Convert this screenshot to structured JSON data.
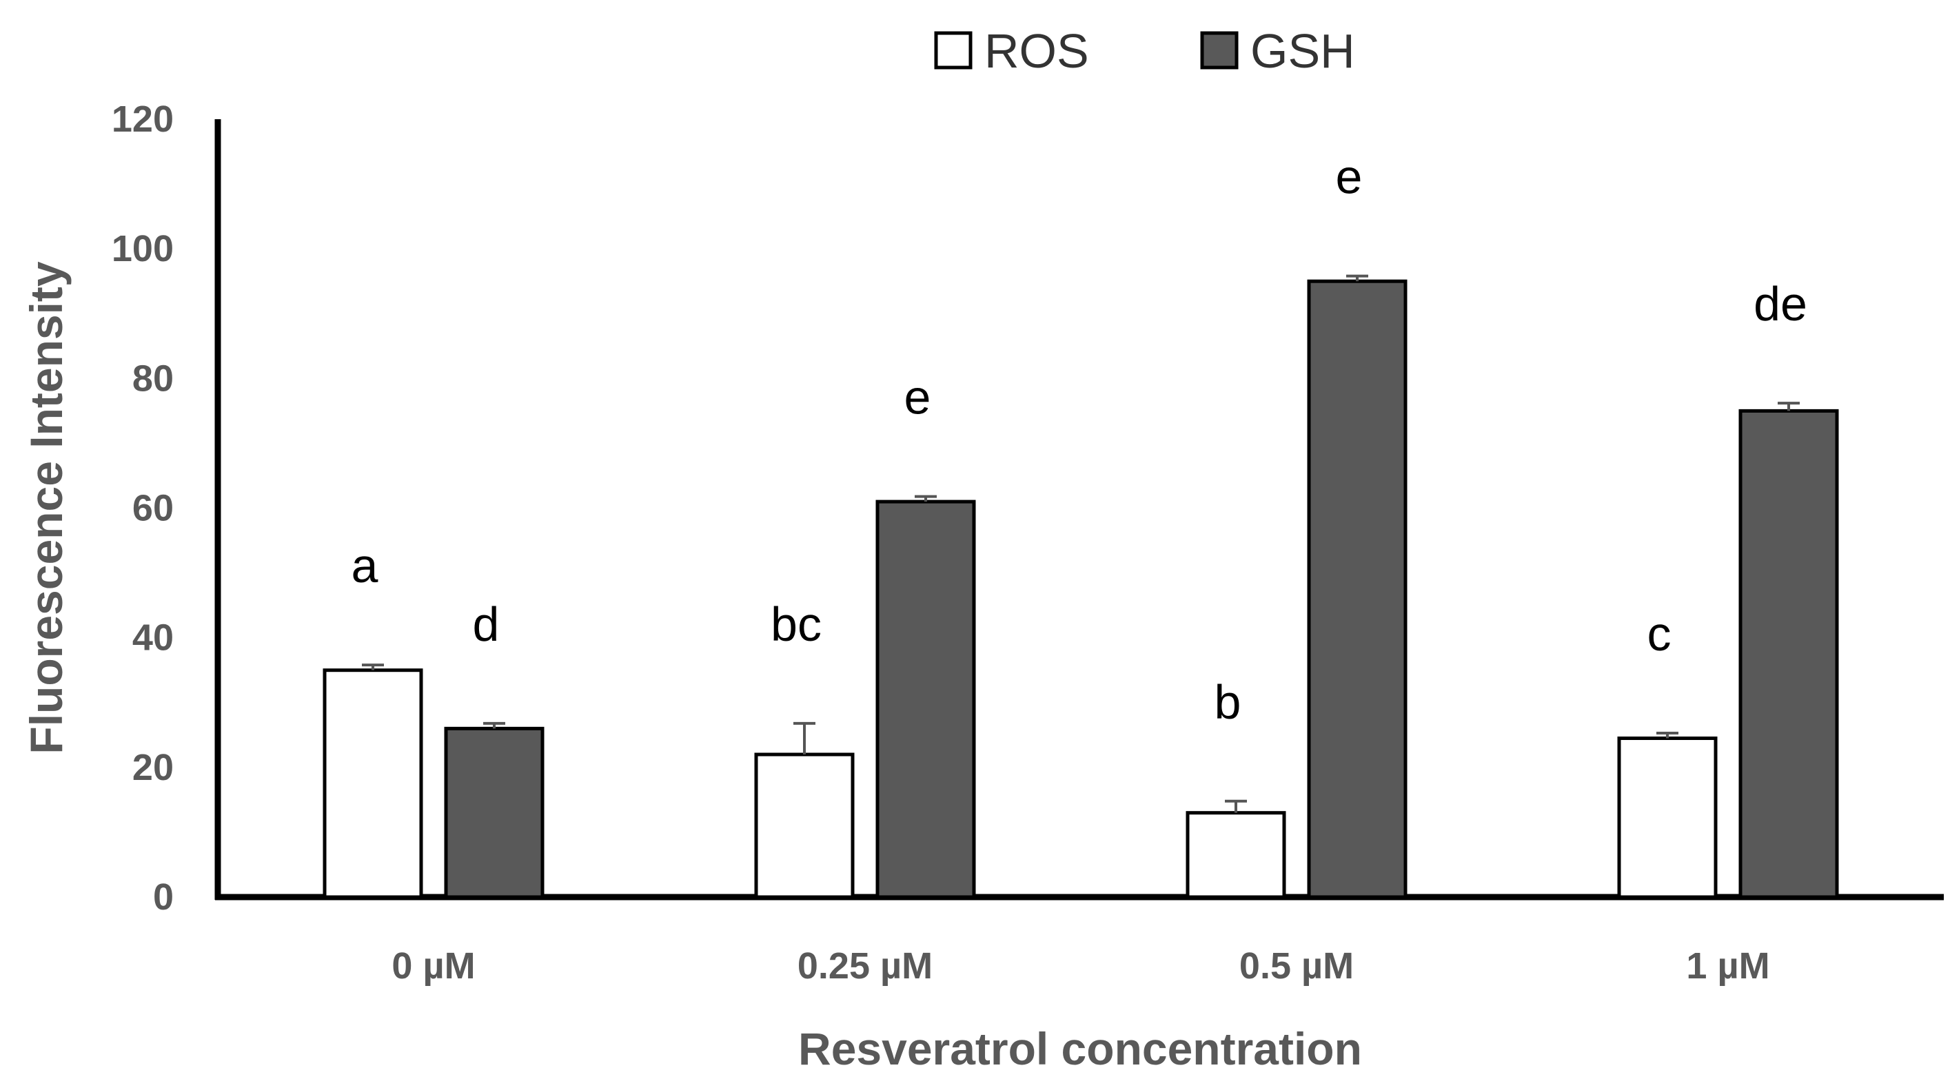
{
  "chart_data": {
    "type": "bar",
    "title": "",
    "xlabel": "Resveratrol concentration",
    "ylabel": "Fluorescence  Intensity",
    "ylim": [
      0,
      120
    ],
    "yticks": [
      0,
      20,
      40,
      60,
      80,
      100,
      120
    ],
    "categories": [
      "0 µM",
      "0.25 µM",
      "0.5 µM",
      "1 µM"
    ],
    "legend_position": "top-center",
    "grid": false,
    "series": [
      {
        "name": "ROS",
        "color": "#ffffff",
        "values": [
          35,
          22,
          13,
          24.5
        ],
        "errors": [
          0.8,
          4.8,
          1.8,
          0.8
        ],
        "labels": [
          "a",
          "bc",
          "b",
          "c"
        ]
      },
      {
        "name": "GSH",
        "color": "#595959",
        "values": [
          26,
          61,
          95,
          75
        ],
        "errors": [
          0.8,
          0.8,
          0.8,
          1.2
        ],
        "labels": [
          "d",
          "e",
          "e",
          "de"
        ]
      }
    ]
  }
}
